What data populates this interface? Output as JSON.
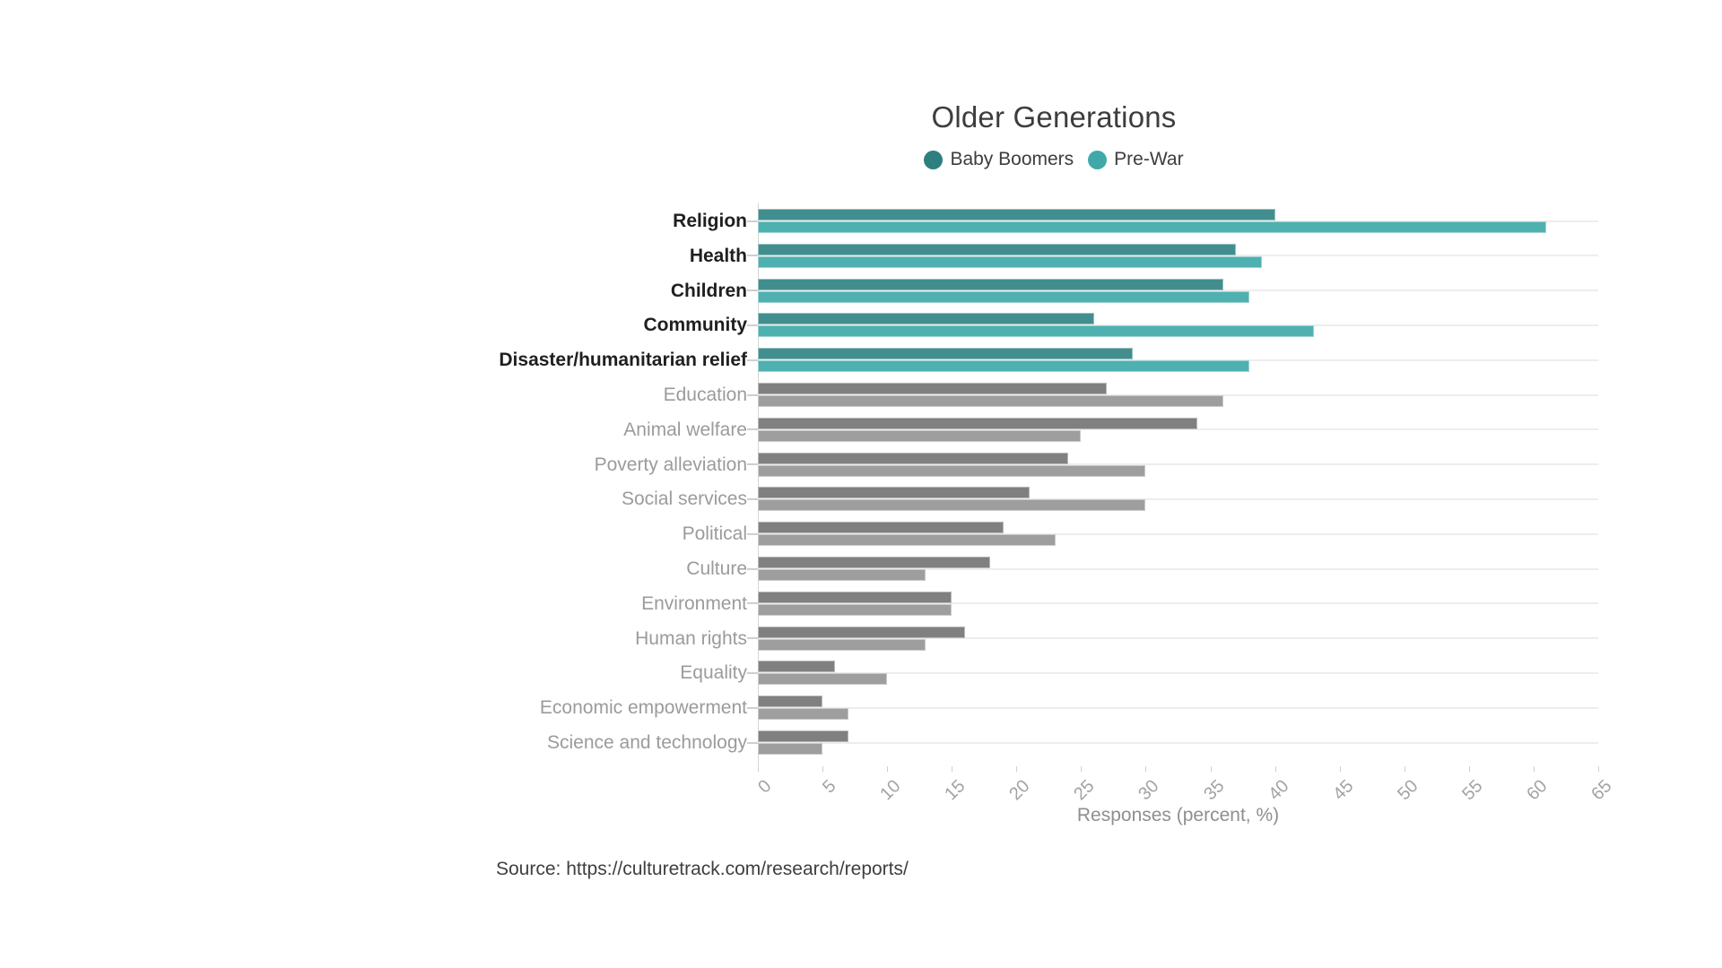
{
  "title": "Older Generations",
  "legend": {
    "items": [
      {
        "label": "Baby Boomers",
        "color": "#2d7f80"
      },
      {
        "label": "Pre-War",
        "color": "#3fa9a9"
      }
    ]
  },
  "x_axis": {
    "label": "Responses (percent, %)",
    "ticks": [
      "0",
      "5",
      "10",
      "15",
      "20",
      "25",
      "30",
      "35",
      "40",
      "45",
      "50",
      "55",
      "60",
      "65"
    ],
    "max": 65
  },
  "source_note": "Source: https://culturetrack.com/research/reports/",
  "colors": {
    "boomers_bar_highlight": "#428e8e",
    "prewar_bar_highlight": "#4fb0b0",
    "boomers_bar_muted": "#808080",
    "prewar_bar_muted": "#9e9e9e",
    "grid": "#ededed",
    "label_highlight": "#1f1f1f",
    "label_muted": "#9b9b9b"
  },
  "chart_data": {
    "type": "bar",
    "orientation": "horizontal",
    "title": "Older Generations",
    "xlabel": "Responses (percent, %)",
    "xlim": [
      0,
      65
    ],
    "grid": "per-category horizontal gridlines",
    "legend_position": "top-center",
    "categories": [
      "Religion",
      "Health",
      "Children",
      "Community",
      "Disaster/humanitarian relief",
      "Education",
      "Animal welfare",
      "Poverty alleviation",
      "Social services",
      "Political",
      "Culture",
      "Environment",
      "Human rights",
      "Equality",
      "Economic empowerment",
      "Science and technology"
    ],
    "highlighted_first_n": 5,
    "series": [
      {
        "name": "Baby Boomers",
        "values": [
          40,
          37,
          36,
          26,
          29,
          27,
          34,
          24,
          21,
          19,
          18,
          15,
          16,
          6,
          5,
          7
        ]
      },
      {
        "name": "Pre-War",
        "values": [
          61,
          39,
          38,
          43,
          38,
          36,
          25,
          30,
          30,
          23,
          13,
          15,
          13,
          10,
          7,
          5
        ]
      }
    ]
  }
}
